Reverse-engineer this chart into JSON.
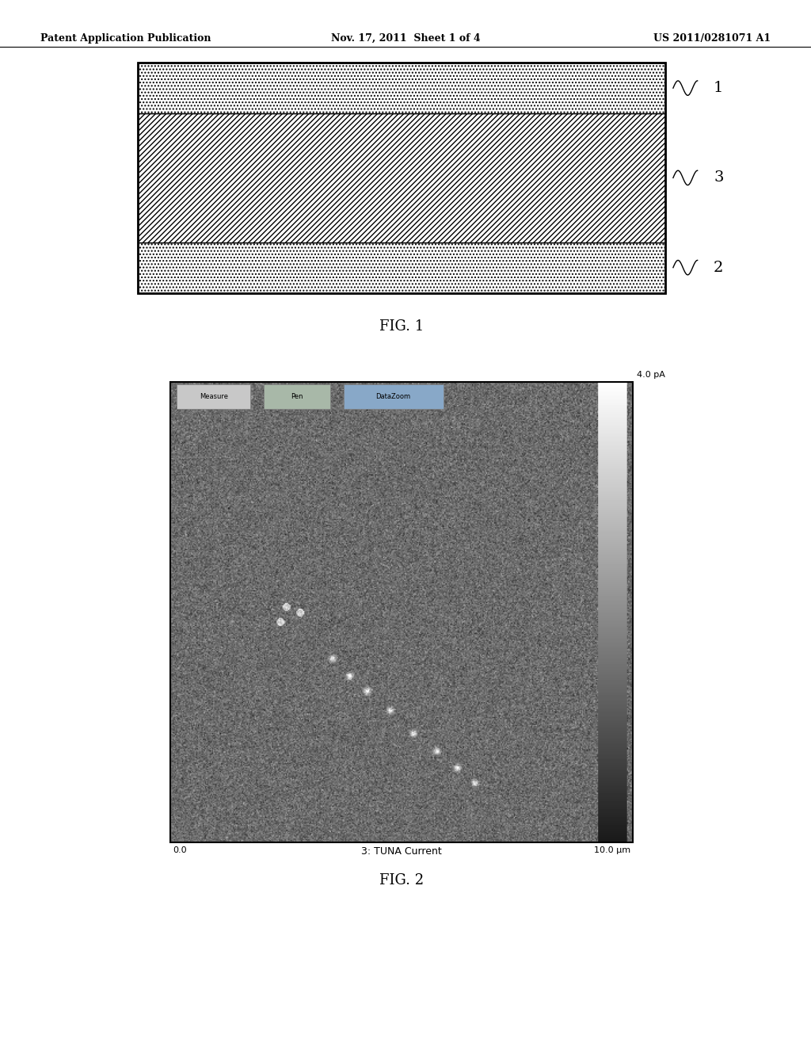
{
  "header_left": "Patent Application Publication",
  "header_center": "Nov. 17, 2011  Sheet 1 of 4",
  "header_right": "US 2011/0281071 A1",
  "fig1_label": "FIG. 1",
  "fig2_label": "FIG. 2",
  "layer_labels": [
    "1",
    "3",
    "2"
  ],
  "background_color": "#ffffff",
  "tuna_label": "3: TUNA Current",
  "tuna_left": "0.0",
  "tuna_right": "10.0 μm",
  "tuna_top_right": "4.0 pA",
  "toolbar_labels": [
    "Measure",
    "Pen",
    "DataZoom"
  ]
}
